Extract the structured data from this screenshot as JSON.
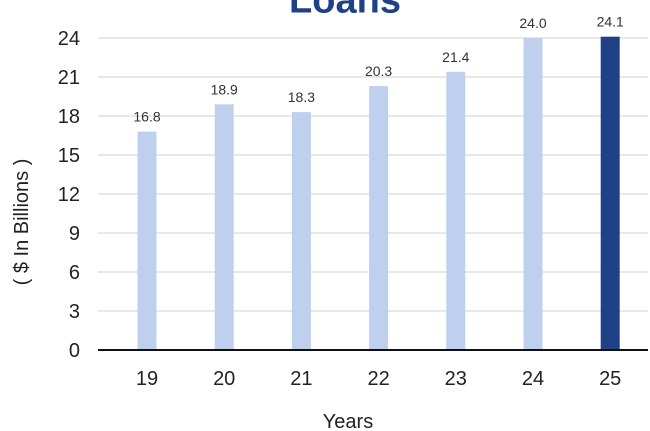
{
  "chart_data": {
    "type": "bar",
    "title": "Loans",
    "xlabel": "Years",
    "ylabel": "( $ In Billions )",
    "categories": [
      "19",
      "20",
      "21",
      "22",
      "23",
      "24",
      "25"
    ],
    "series": [
      {
        "values": [
          16.8,
          18.9,
          18.3,
          20.3,
          21.4,
          24.0,
          24.1
        ],
        "data_labels": [
          "16.8",
          "18.9",
          "18.3",
          "20.3",
          "21.4",
          "24.0",
          "24.1"
        ]
      }
    ],
    "ylim": [
      0,
      24
    ],
    "yticks": [
      0,
      3,
      6,
      9,
      12,
      15,
      18,
      21,
      24
    ],
    "grid": true,
    "legend": "none",
    "colors": {
      "bar": "#bfd0ee",
      "highlight_bar": "#1f4287",
      "title": "#1f4287",
      "grid": "#d0d0d0",
      "axis": "#111111"
    },
    "highlight_category": "25"
  }
}
